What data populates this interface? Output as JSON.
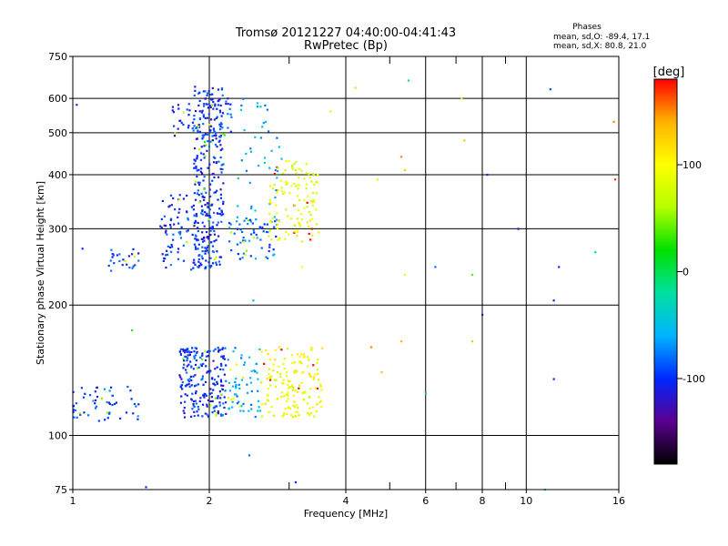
{
  "chart_data": {
    "type": "scatter",
    "title": "Tromsø 20121227 04:40:00-04:41:43",
    "subtitle": "RwPretec (Bp)",
    "xlabel": "Frequency [MHz]",
    "ylabel": "Stationary phase Virtual Height [km]",
    "x_scale": "log",
    "y_scale": "log",
    "xlim": [
      1,
      16
    ],
    "ylim": [
      75,
      750
    ],
    "x_ticks": [
      1,
      2,
      4,
      6,
      8,
      10,
      16
    ],
    "y_ticks": [
      75,
      100,
      200,
      300,
      400,
      500,
      600,
      750
    ],
    "x_minor_ticks": [
      3,
      5,
      7,
      9
    ],
    "grid": true,
    "stats": {
      "heading": "Phases",
      "line_o": "mean, sd,O: -89.4, 17.1",
      "line_x": "mean, sd,X:  80.8, 21.0"
    },
    "colorbar": {
      "label": "[deg]",
      "range": [
        -180,
        180
      ],
      "ticks": [
        100,
        0,
        -100
      ],
      "colors": [
        "#000000",
        "#5a0090",
        "#0028ff",
        "#00b4ff",
        "#00e0a0",
        "#00e000",
        "#b4ff00",
        "#ffff00",
        "#ffb400",
        "#ff0000"
      ]
    },
    "series": [
      {
        "name": "O",
        "values_note": "",
        "color": "#1e3cff"
      },
      {
        "name": "X",
        "values_note": "",
        "color": "#d2ff00"
      }
    ],
    "clusters": [
      {
        "x": [
          1.85,
          2.15
        ],
        "y": [
          245,
          640
        ],
        "phase": -100,
        "n": 260
      },
      {
        "x": [
          1.55,
          2.05
        ],
        "y": [
          240,
          360
        ],
        "phase": -100,
        "n": 120
      },
      {
        "x": [
          1.65,
          2.25
        ],
        "y": [
          480,
          600
        ],
        "phase": -100,
        "n": 60
      },
      {
        "x": [
          2.2,
          2.85
        ],
        "y": [
          255,
          320
        ],
        "phase": -80,
        "n": 70
      },
      {
        "x": [
          2.3,
          2.9
        ],
        "y": [
          330,
          600
        ],
        "phase": -60,
        "n": 40
      },
      {
        "x": [
          2.7,
          3.5
        ],
        "y": [
          280,
          430
        ],
        "phase": 90,
        "n": 120
      },
      {
        "x": [
          1.2,
          1.4
        ],
        "y": [
          240,
          270
        ],
        "phase": -100,
        "n": 25
      },
      {
        "x": [
          1.0,
          1.4
        ],
        "y": [
          108,
          130
        ],
        "phase": -90,
        "n": 55
      },
      {
        "x": [
          1.72,
          2.18
        ],
        "y": [
          110,
          160
        ],
        "phase": -100,
        "n": 220
      },
      {
        "x": [
          2.2,
          2.6
        ],
        "y": [
          110,
          160
        ],
        "phase": -60,
        "n": 60
      },
      {
        "x": [
          2.6,
          3.55
        ],
        "y": [
          110,
          160
        ],
        "phase": 95,
        "n": 160
      }
    ],
    "scattered_points": [
      {
        "x": 1.05,
        "y": 270,
        "phase": -100
      },
      {
        "x": 1.02,
        "y": 580,
        "phase": -100
      },
      {
        "x": 4.7,
        "y": 390,
        "phase": 110
      },
      {
        "x": 5.3,
        "y": 440,
        "phase": 150
      },
      {
        "x": 5.4,
        "y": 410,
        "phase": 130
      },
      {
        "x": 5.5,
        "y": 660,
        "phase": -30
      },
      {
        "x": 5.4,
        "y": 235,
        "phase": 100
      },
      {
        "x": 7.2,
        "y": 600,
        "phase": 110
      },
      {
        "x": 7.3,
        "y": 480,
        "phase": 130
      },
      {
        "x": 7.6,
        "y": 235,
        "phase": 40
      },
      {
        "x": 8.2,
        "y": 400,
        "phase": -100
      },
      {
        "x": 9.6,
        "y": 300,
        "phase": -110
      },
      {
        "x": 11.3,
        "y": 630,
        "phase": -90
      },
      {
        "x": 11.8,
        "y": 245,
        "phase": -100
      },
      {
        "x": 11.5,
        "y": 205,
        "phase": -100
      },
      {
        "x": 15.6,
        "y": 530,
        "phase": 150
      },
      {
        "x": 15.7,
        "y": 390,
        "phase": 170
      },
      {
        "x": 14.2,
        "y": 265,
        "phase": -30
      },
      {
        "x": 3.1,
        "y": 78,
        "phase": -100
      },
      {
        "x": 2.45,
        "y": 90,
        "phase": -80
      },
      {
        "x": 1.45,
        "y": 76,
        "phase": -100
      },
      {
        "x": 4.55,
        "y": 160,
        "phase": 150
      },
      {
        "x": 4.8,
        "y": 140,
        "phase": 130
      },
      {
        "x": 5.3,
        "y": 165,
        "phase": 140
      },
      {
        "x": 6.0,
        "y": 125,
        "phase": -10
      },
      {
        "x": 7.6,
        "y": 165,
        "phase": 130
      },
      {
        "x": 8.0,
        "y": 190,
        "phase": -120
      },
      {
        "x": 11.5,
        "y": 135,
        "phase": -100
      },
      {
        "x": 11.0,
        "y": 75,
        "phase": -20
      },
      {
        "x": 4.2,
        "y": 635,
        "phase": 120
      },
      {
        "x": 3.7,
        "y": 560,
        "phase": 80
      },
      {
        "x": 1.35,
        "y": 175,
        "phase": 30
      },
      {
        "x": 2.5,
        "y": 205,
        "phase": -60
      },
      {
        "x": 3.2,
        "y": 245,
        "phase": 100
      },
      {
        "x": 6.3,
        "y": 245,
        "phase": -80
      }
    ]
  }
}
